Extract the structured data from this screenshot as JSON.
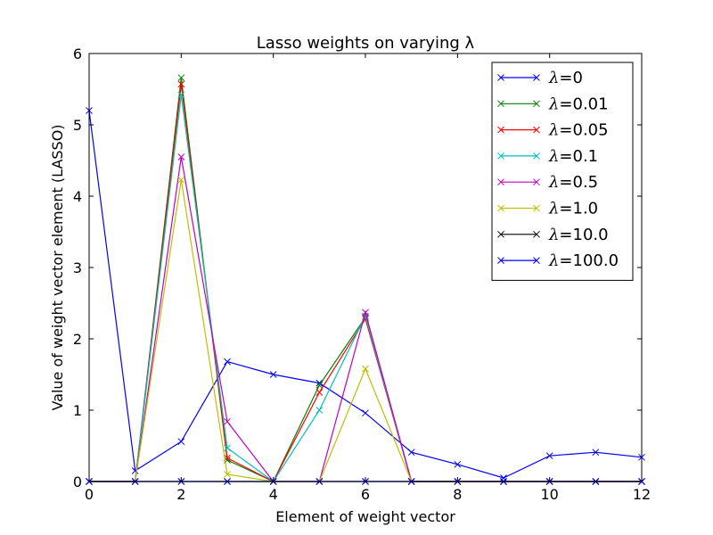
{
  "chart_data": {
    "type": "line",
    "title": "Lasso weights on varying λ",
    "xlabel": "Element of weight vector",
    "ylabel": "Value of weight vector element (LASSO)",
    "xlim": [
      0,
      12
    ],
    "ylim": [
      0,
      6
    ],
    "xticks": [
      "0",
      "2",
      "4",
      "6",
      "8",
      "10",
      "12"
    ],
    "yticks": [
      "0",
      "1",
      "2",
      "3",
      "4",
      "5",
      "6"
    ],
    "grid": false,
    "legend_position": "top-right",
    "x": [
      0,
      1,
      2,
      3,
      4,
      5,
      6,
      7,
      8,
      9,
      10,
      11,
      12
    ],
    "series": [
      {
        "lam": "λ",
        "value_label": "=0",
        "color": "#0000ff",
        "values": [
          5.2,
          0.15,
          0.56,
          1.68,
          1.5,
          1.38,
          0.96,
          0.41,
          0.24,
          0.05,
          0.36,
          0.41,
          0.34
        ]
      },
      {
        "lam": "λ",
        "value_label": "=0.01",
        "color": "#008000",
        "values": [
          0,
          0,
          5.66,
          0.3,
          0,
          1.35,
          2.3,
          0,
          0,
          0,
          0,
          0,
          0
        ]
      },
      {
        "lam": "λ",
        "value_label": "=0.05",
        "color": "#ff0000",
        "values": [
          0,
          0,
          5.57,
          0.33,
          0,
          1.25,
          2.28,
          0,
          0,
          0,
          0,
          0,
          0
        ]
      },
      {
        "lam": "λ",
        "value_label": "=0.1",
        "color": "#00bfbf",
        "values": [
          0,
          0,
          5.42,
          0.47,
          0,
          1.0,
          2.32,
          0,
          0,
          0,
          0,
          0,
          0
        ]
      },
      {
        "lam": "λ",
        "value_label": "=0.5",
        "color": "#bf00bf",
        "values": [
          0,
          0,
          4.55,
          0.84,
          0,
          0,
          2.37,
          0,
          0,
          0,
          0,
          0,
          0
        ]
      },
      {
        "lam": "λ",
        "value_label": "=1.0",
        "color": "#bfbf00",
        "values": [
          0,
          0,
          4.23,
          0.1,
          0,
          0,
          1.58,
          0,
          0,
          0,
          0,
          0,
          0
        ]
      },
      {
        "lam": "λ",
        "value_label": "=10.0",
        "color": "#000000",
        "values": [
          0,
          0,
          0,
          0,
          0,
          0,
          0,
          0,
          0,
          0,
          0,
          0,
          0
        ]
      },
      {
        "lam": "λ",
        "value_label": "=100.0",
        "color": "#0000ff",
        "values": [
          0,
          0,
          0,
          0,
          0,
          0,
          0,
          0,
          0,
          0,
          0,
          0,
          0
        ]
      }
    ]
  }
}
